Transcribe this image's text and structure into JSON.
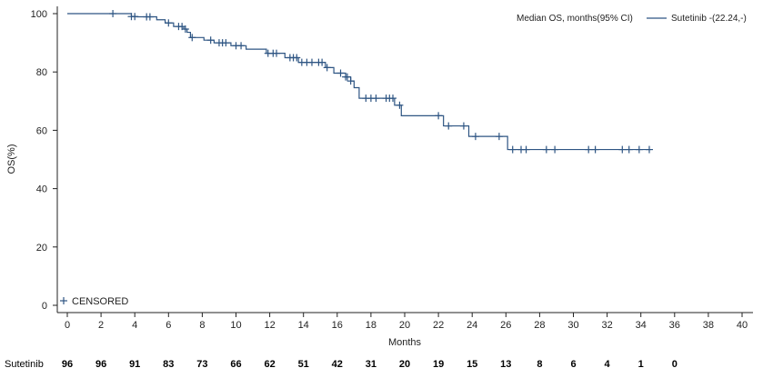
{
  "chart_data": {
    "type": "line",
    "subtype": "kaplan-meier",
    "xlabel": "Months",
    "ylabel": "OS(%)",
    "xlim": [
      0,
      40
    ],
    "ylim": [
      0,
      100
    ],
    "x_ticks": [
      0,
      2,
      4,
      6,
      8,
      10,
      12,
      14,
      16,
      18,
      20,
      22,
      24,
      26,
      28,
      30,
      32,
      34,
      36,
      38,
      40
    ],
    "y_ticks": [
      0,
      20,
      40,
      60,
      80,
      100
    ],
    "grid": false,
    "legend_title": "Median OS, months(95% CI)",
    "legend_position": "top-right",
    "censored_label": "CENSORED",
    "series": [
      {
        "name": "Sutetinib -(22.24,-)",
        "color": "#2e5583",
        "steps": [
          [
            0,
            100
          ],
          [
            3.8,
            99.0
          ],
          [
            4.1,
            98.9
          ],
          [
            5.3,
            97.9
          ],
          [
            5.8,
            96.8
          ],
          [
            6.3,
            95.6
          ],
          [
            6.9,
            94.7
          ],
          [
            7.1,
            93.6
          ],
          [
            7.3,
            91.8
          ],
          [
            8.1,
            90.9
          ],
          [
            8.7,
            90.0
          ],
          [
            9.7,
            89.0
          ],
          [
            10.6,
            87.8
          ],
          [
            11.8,
            86.4
          ],
          [
            12.9,
            84.9
          ],
          [
            13.7,
            83.3
          ],
          [
            15.3,
            81.5
          ],
          [
            15.8,
            79.6
          ],
          [
            16.5,
            78.3
          ],
          [
            16.8,
            76.9
          ],
          [
            17.0,
            74.6
          ],
          [
            17.3,
            71.0
          ],
          [
            19.4,
            68.6
          ],
          [
            19.8,
            65.0
          ],
          [
            22.3,
            61.5
          ],
          [
            23.8,
            57.9
          ],
          [
            26.1,
            53.4
          ],
          [
            34.6,
            53.4
          ]
        ],
        "censored": [
          2.7,
          3.8,
          4.0,
          4.7,
          4.9,
          6.0,
          6.6,
          6.8,
          7.0,
          7.4,
          8.5,
          9.0,
          9.2,
          9.4,
          10.0,
          10.3,
          11.9,
          12.2,
          12.4,
          13.2,
          13.4,
          13.6,
          13.9,
          14.2,
          14.5,
          14.9,
          15.1,
          15.4,
          16.2,
          16.5,
          16.6,
          16.8,
          17.7,
          18.0,
          18.3,
          18.9,
          19.1,
          19.3,
          19.7,
          22.0,
          22.6,
          23.5,
          24.2,
          25.6,
          26.4,
          26.9,
          27.2,
          28.4,
          28.9,
          30.9,
          31.3,
          32.9,
          33.3,
          33.9,
          34.5
        ]
      }
    ],
    "risk_table": {
      "label": "Sutetinib",
      "times": [
        0,
        2,
        4,
        6,
        8,
        10,
        12,
        14,
        16,
        18,
        20,
        22,
        24,
        26,
        28,
        30,
        32,
        34,
        36
      ],
      "counts": [
        "96",
        "96",
        "91",
        "83",
        "73",
        "66",
        "62",
        "51",
        "42",
        "31",
        "20",
        "19",
        "15",
        "13",
        "8",
        "6",
        "4",
        "1",
        "0"
      ]
    }
  }
}
